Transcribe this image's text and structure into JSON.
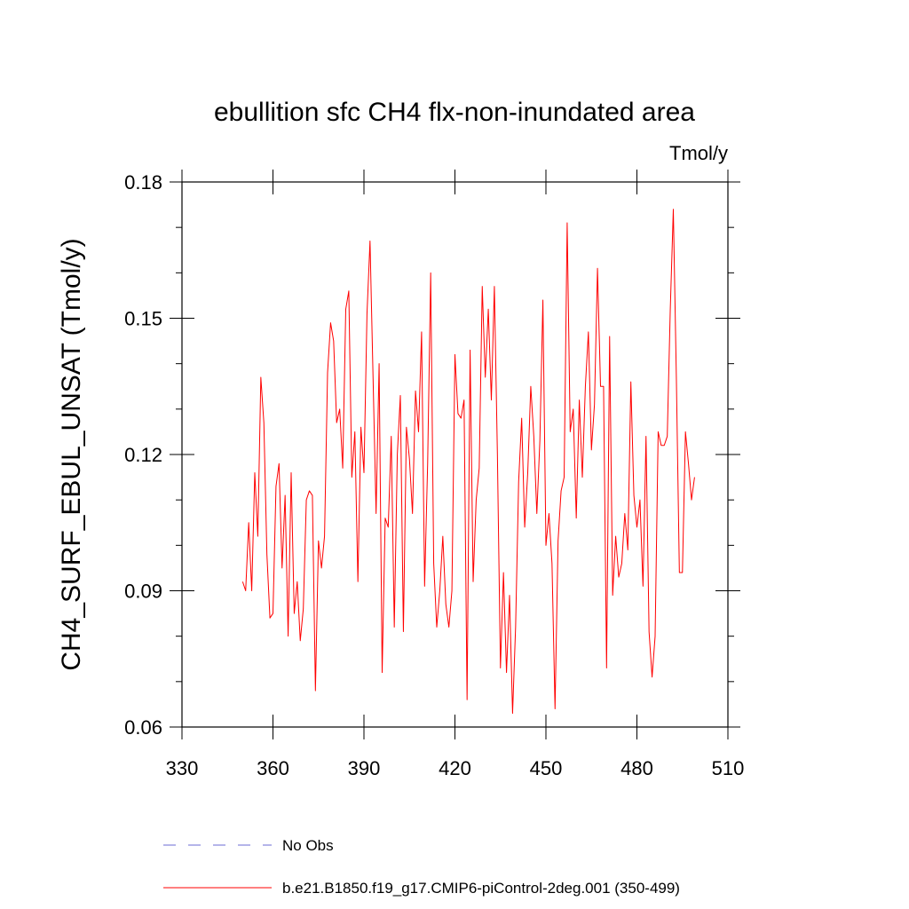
{
  "chart_data": {
    "type": "line",
    "title": "ebullition sfc CH4 flx-non-inundated area",
    "units_label": "Tmol/y",
    "xlabel": "",
    "ylabel": "CH4_SURF_EBUL_UNSAT  (Tmol/y)",
    "xlim": [
      330,
      510
    ],
    "ylim": [
      0.06,
      0.18
    ],
    "x_ticks": [
      "330",
      "360",
      "390",
      "420",
      "450",
      "480",
      "510"
    ],
    "y_ticks": [
      "0.06",
      "0.09",
      "0.12",
      "0.15",
      "0.18"
    ],
    "x_tick_values": [
      330,
      360,
      390,
      420,
      450,
      480,
      510
    ],
    "y_tick_values": [
      0.06,
      0.09,
      0.12,
      0.15,
      0.18
    ],
    "y_minor_step": 0.01,
    "series": [
      {
        "name": "b.e21.B1850.f19_g17.CMIP6-piControl-2deg.001 (350-499)",
        "color": "#ff0000",
        "x_start": 350,
        "values": [
          0.092,
          0.09,
          0.105,
          0.09,
          0.116,
          0.102,
          0.137,
          0.127,
          0.098,
          0.084,
          0.085,
          0.113,
          0.118,
          0.095,
          0.111,
          0.08,
          0.116,
          0.085,
          0.092,
          0.079,
          0.086,
          0.11,
          0.112,
          0.111,
          0.068,
          0.101,
          0.095,
          0.102,
          0.138,
          0.149,
          0.145,
          0.127,
          0.13,
          0.117,
          0.152,
          0.156,
          0.115,
          0.125,
          0.092,
          0.126,
          0.116,
          0.151,
          0.167,
          0.137,
          0.107,
          0.14,
          0.072,
          0.106,
          0.104,
          0.124,
          0.082,
          0.12,
          0.133,
          0.081,
          0.126,
          0.119,
          0.107,
          0.134,
          0.125,
          0.147,
          0.091,
          0.118,
          0.16,
          0.096,
          0.082,
          0.09,
          0.102,
          0.087,
          0.082,
          0.09,
          0.142,
          0.129,
          0.128,
          0.132,
          0.066,
          0.143,
          0.092,
          0.11,
          0.117,
          0.157,
          0.137,
          0.152,
          0.132,
          0.157,
          0.12,
          0.073,
          0.094,
          0.072,
          0.089,
          0.063,
          0.082,
          0.114,
          0.128,
          0.104,
          0.116,
          0.135,
          0.124,
          0.107,
          0.123,
          0.154,
          0.1,
          0.107,
          0.096,
          0.064,
          0.101,
          0.112,
          0.115,
          0.171,
          0.125,
          0.13,
          0.106,
          0.132,
          0.115,
          0.135,
          0.147,
          0.121,
          0.131,
          0.161,
          0.135,
          0.135,
          0.073,
          0.146,
          0.089,
          0.102,
          0.093,
          0.096,
          0.107,
          0.099,
          0.136,
          0.111,
          0.104,
          0.11,
          0.091,
          0.124,
          0.081,
          0.071,
          0.08,
          0.125,
          0.122,
          0.122,
          0.124,
          0.152,
          0.174,
          0.137,
          0.094,
          0.094,
          0.125,
          0.118,
          0.11,
          0.115
        ]
      }
    ],
    "legend": [
      {
        "label": "No Obs",
        "style": "dashed",
        "color": "#6b6bd6"
      },
      {
        "label": "b.e21.B1850.f19_g17.CMIP6-piControl-2deg.001 (350-499)",
        "style": "solid",
        "color": "#ff0000"
      }
    ]
  }
}
